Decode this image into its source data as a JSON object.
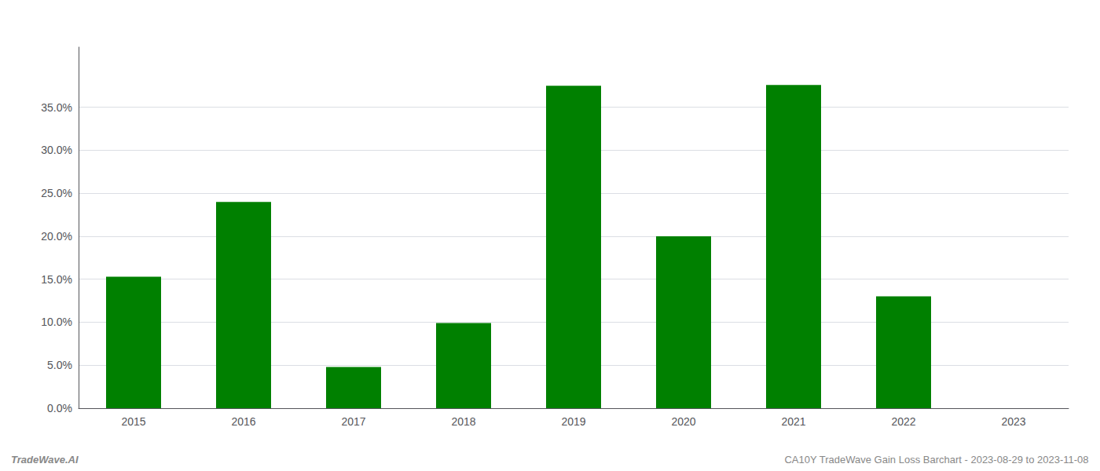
{
  "chart_data": {
    "type": "bar",
    "categories": [
      "2015",
      "2016",
      "2017",
      "2018",
      "2019",
      "2020",
      "2021",
      "2022",
      "2023"
    ],
    "values": [
      0.153,
      0.24,
      0.048,
      0.099,
      0.375,
      0.2,
      0.376,
      0.13,
      0.0
    ],
    "color": "#008000",
    "ylim": [
      0.0,
      0.42
    ],
    "yticks": [
      {
        "value": 0.0,
        "label": "0.0%"
      },
      {
        "value": 0.05,
        "label": "5.0%"
      },
      {
        "value": 0.1,
        "label": "10.0%"
      },
      {
        "value": 0.15,
        "label": "15.0%"
      },
      {
        "value": 0.2,
        "label": "20.0%"
      },
      {
        "value": 0.25,
        "label": "25.0%"
      },
      {
        "value": 0.3,
        "label": "30.0%"
      },
      {
        "value": 0.35,
        "label": "35.0%"
      }
    ],
    "grid": true,
    "annotations": [
      "TradeWave.AI",
      "CA10Y TradeWave Gain Loss Barchart - 2023-08-29 to 2023-11-08"
    ]
  }
}
